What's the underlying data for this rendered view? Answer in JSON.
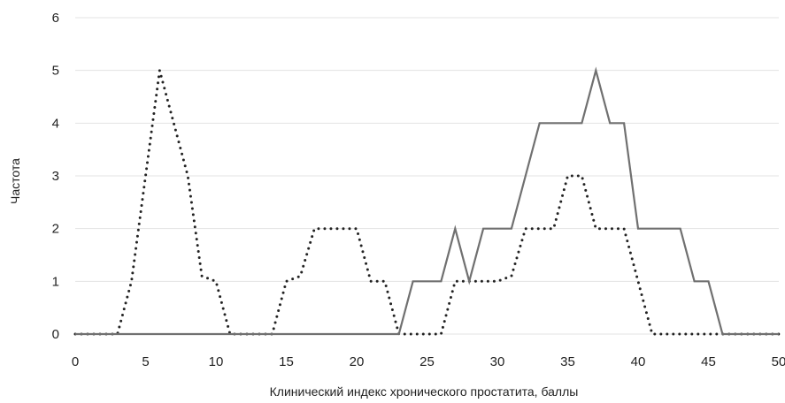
{
  "chart_data": {
    "type": "line",
    "title": "",
    "xlabel": "Клинический индекс хронического простатита, баллы",
    "ylabel": "Частота",
    "xlim": [
      0,
      50
    ],
    "ylim": [
      0,
      6
    ],
    "x_ticks": [
      "0",
      "5",
      "10",
      "15",
      "20",
      "25",
      "30",
      "35",
      "40",
      "45",
      "50"
    ],
    "y_ticks": [
      "0",
      "1",
      "2",
      "3",
      "4",
      "5",
      "6"
    ],
    "grid": "horizontal",
    "legend": "none",
    "series": [
      {
        "style": "dotted",
        "color": "#222222",
        "points": [
          [
            0,
            0
          ],
          [
            3,
            0
          ],
          [
            4,
            1
          ],
          [
            5,
            3
          ],
          [
            6,
            5
          ],
          [
            7,
            4
          ],
          [
            8,
            3
          ],
          [
            9,
            1.1
          ],
          [
            10,
            1
          ],
          [
            11,
            0
          ],
          [
            14,
            0
          ],
          [
            15,
            1
          ],
          [
            16,
            1.1
          ],
          [
            17,
            2
          ],
          [
            18,
            2
          ],
          [
            19,
            2
          ],
          [
            20,
            2
          ],
          [
            21,
            1
          ],
          [
            22,
            1
          ],
          [
            23,
            0
          ],
          [
            25,
            0
          ],
          [
            26,
            0
          ],
          [
            27,
            1
          ],
          [
            28,
            1
          ],
          [
            29,
            1
          ],
          [
            30,
            1
          ],
          [
            31,
            1.1
          ],
          [
            32,
            2
          ],
          [
            33,
            2
          ],
          [
            34,
            2
          ],
          [
            35,
            3
          ],
          [
            36,
            3
          ],
          [
            37,
            2
          ],
          [
            38,
            2
          ],
          [
            39,
            2
          ],
          [
            40,
            1
          ],
          [
            41,
            0
          ],
          [
            50,
            0
          ]
        ]
      },
      {
        "style": "solid",
        "color": "#707070",
        "points": [
          [
            0,
            0
          ],
          [
            23,
            0
          ],
          [
            24,
            1
          ],
          [
            26,
            1
          ],
          [
            27,
            2
          ],
          [
            28,
            1
          ],
          [
            29,
            2
          ],
          [
            31,
            2
          ],
          [
            32,
            3
          ],
          [
            33,
            4
          ],
          [
            36,
            4
          ],
          [
            37,
            5
          ],
          [
            38,
            4
          ],
          [
            39,
            4
          ],
          [
            40,
            2
          ],
          [
            43,
            2
          ],
          [
            44,
            1
          ],
          [
            45,
            1
          ],
          [
            46,
            0
          ],
          [
            50,
            0
          ]
        ]
      }
    ]
  }
}
